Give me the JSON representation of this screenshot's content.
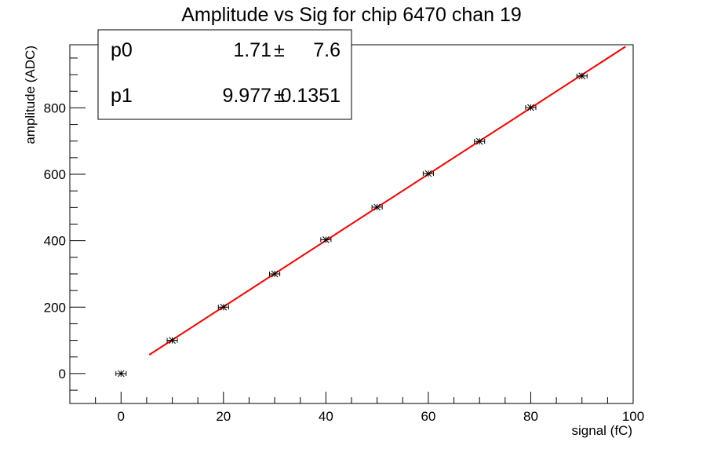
{
  "chart_data": {
    "type": "scatter",
    "title": "Amplitude vs Sig for chip 6470 chan 19",
    "xlabel": "signal (fC)",
    "ylabel": "amplitude (ADC)",
    "xlim": [
      -10,
      100
    ],
    "ylim": [
      -90,
      990
    ],
    "xticks": [
      0,
      20,
      40,
      60,
      80,
      100
    ],
    "yticks": [
      0,
      200,
      400,
      600,
      800
    ],
    "grid": false,
    "points": [
      {
        "x": 0,
        "y": 0,
        "xerr": 1
      },
      {
        "x": 10,
        "y": 100,
        "xerr": 1
      },
      {
        "x": 20,
        "y": 200,
        "xerr": 1
      },
      {
        "x": 30,
        "y": 300,
        "xerr": 1
      },
      {
        "x": 40,
        "y": 403,
        "xerr": 1
      },
      {
        "x": 50,
        "y": 501,
        "xerr": 1
      },
      {
        "x": 60,
        "y": 602,
        "xerr": 1
      },
      {
        "x": 70,
        "y": 699,
        "xerr": 1
      },
      {
        "x": 80,
        "y": 801,
        "xerr": 1
      },
      {
        "x": 90,
        "y": 896,
        "xerr": 1
      }
    ],
    "fit": {
      "x_range": [
        5.5,
        98.5
      ],
      "intercept": 1.71,
      "slope": 9.977,
      "color": "#ff0000"
    },
    "stats_box": {
      "rows": [
        {
          "name": "p0",
          "value": "1.71",
          "pm": "±",
          "error": "7.6"
        },
        {
          "name": "p1",
          "value": "9.977",
          "pm": "±",
          "error": "0.1351"
        }
      ]
    },
    "marker_color": "#000000"
  }
}
